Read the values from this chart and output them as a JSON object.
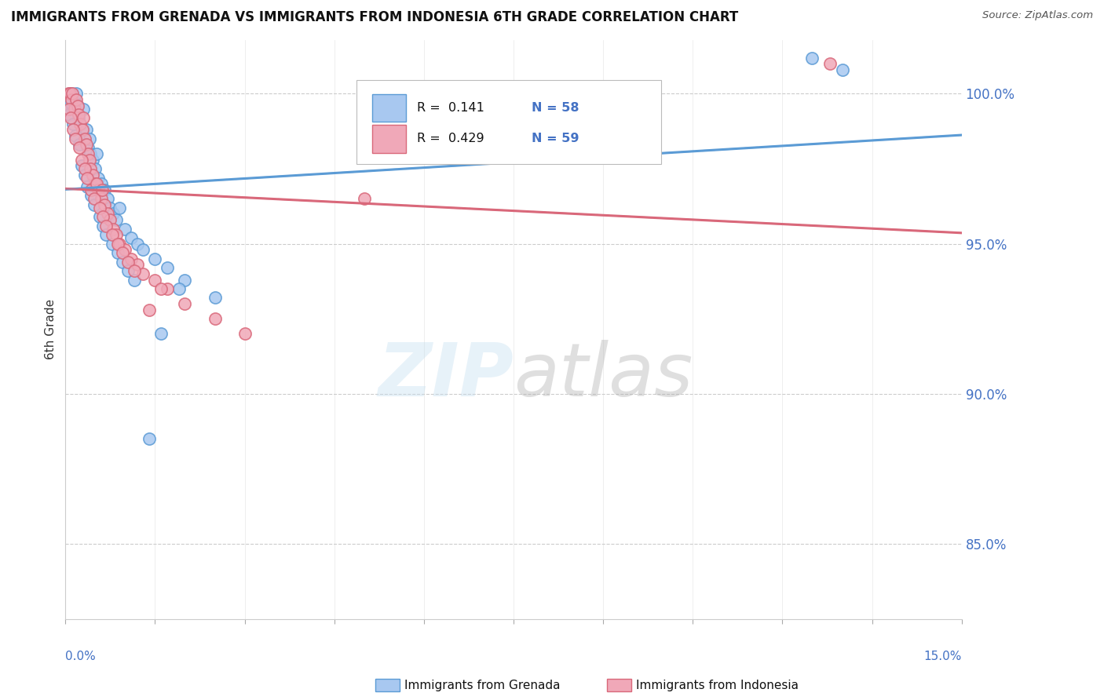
{
  "title": "IMMIGRANTS FROM GRENADA VS IMMIGRANTS FROM INDONESIA 6TH GRADE CORRELATION CHART",
  "source": "Source: ZipAtlas.com",
  "ylabel": "6th Grade",
  "xlim": [
    0.0,
    15.0
  ],
  "ylim": [
    82.5,
    101.8
  ],
  "R_grenada": 0.141,
  "N_grenada": 58,
  "R_indonesia": 0.429,
  "N_indonesia": 59,
  "color_grenada": "#a8c8f0",
  "color_indonesia": "#f0a8b8",
  "color_grenada_line": "#5b9bd5",
  "color_indonesia_line": "#d9687a",
  "legend_label_grenada": "Immigrants from Grenada",
  "legend_label_indonesia": "Immigrants from Indonesia",
  "y_tick_vals": [
    85.0,
    90.0,
    95.0,
    100.0
  ],
  "y_tick_labels": [
    "85.0%",
    "90.0%",
    "95.0%",
    "100.0%"
  ],
  "watermark_color": "#c5dff0",
  "watermark_alpha": 0.4,
  "grenada_x": [
    0.05,
    0.08,
    0.1,
    0.12,
    0.15,
    0.18,
    0.2,
    0.22,
    0.25,
    0.28,
    0.3,
    0.32,
    0.35,
    0.38,
    0.4,
    0.42,
    0.45,
    0.5,
    0.52,
    0.55,
    0.6,
    0.65,
    0.7,
    0.75,
    0.8,
    0.85,
    0.9,
    1.0,
    1.1,
    1.2,
    1.3,
    1.5,
    1.7,
    2.0,
    2.5,
    0.06,
    0.09,
    0.13,
    0.17,
    0.23,
    0.27,
    0.33,
    0.37,
    0.43,
    0.48,
    0.58,
    0.63,
    0.68,
    0.78,
    0.88,
    0.95,
    1.05,
    1.15,
    1.4,
    1.6,
    1.9,
    12.5,
    13.0
  ],
  "grenada_y": [
    99.8,
    100.0,
    100.0,
    99.5,
    99.8,
    100.0,
    99.6,
    99.2,
    99.0,
    98.8,
    99.5,
    98.5,
    98.8,
    98.2,
    98.5,
    98.0,
    97.8,
    97.5,
    98.0,
    97.2,
    97.0,
    96.8,
    96.5,
    96.2,
    96.0,
    95.8,
    96.2,
    95.5,
    95.2,
    95.0,
    94.8,
    94.5,
    94.2,
    93.8,
    93.2,
    99.3,
    99.7,
    99.0,
    98.6,
    98.3,
    97.6,
    97.3,
    96.9,
    96.6,
    96.3,
    95.9,
    95.6,
    95.3,
    95.0,
    94.7,
    94.4,
    94.1,
    93.8,
    88.5,
    92.0,
    93.5,
    101.2,
    100.8
  ],
  "indonesia_x": [
    0.05,
    0.08,
    0.1,
    0.12,
    0.15,
    0.18,
    0.2,
    0.22,
    0.25,
    0.28,
    0.3,
    0.32,
    0.35,
    0.38,
    0.4,
    0.42,
    0.45,
    0.5,
    0.55,
    0.6,
    0.65,
    0.7,
    0.75,
    0.8,
    0.85,
    0.9,
    1.0,
    1.1,
    1.2,
    1.3,
    1.5,
    1.7,
    2.0,
    2.5,
    3.0,
    0.06,
    0.09,
    0.13,
    0.17,
    0.23,
    0.27,
    0.33,
    0.37,
    0.43,
    0.48,
    0.58,
    0.63,
    0.68,
    0.78,
    0.88,
    0.95,
    1.05,
    1.15,
    1.4,
    1.6,
    5.0,
    12.8,
    0.52,
    0.62
  ],
  "indonesia_y": [
    100.0,
    100.0,
    99.8,
    100.0,
    99.5,
    99.8,
    99.6,
    99.3,
    99.0,
    98.8,
    99.2,
    98.5,
    98.3,
    98.0,
    97.8,
    97.5,
    97.3,
    97.0,
    96.8,
    96.5,
    96.3,
    96.0,
    95.8,
    95.5,
    95.3,
    95.0,
    94.8,
    94.5,
    94.3,
    94.0,
    93.8,
    93.5,
    93.0,
    92.5,
    92.0,
    99.5,
    99.2,
    98.8,
    98.5,
    98.2,
    97.8,
    97.5,
    97.2,
    96.8,
    96.5,
    96.2,
    95.9,
    95.6,
    95.3,
    95.0,
    94.7,
    94.4,
    94.1,
    92.8,
    93.5,
    96.5,
    101.0,
    97.0,
    96.8
  ]
}
